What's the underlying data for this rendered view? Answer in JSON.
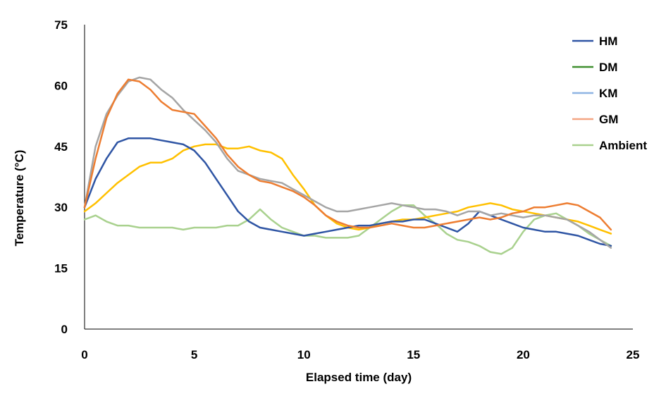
{
  "chart_data": {
    "type": "line",
    "title": "",
    "xlabel": "Elapsed time (day)",
    "ylabel": "Temperature (°C)",
    "xlim": [
      0,
      25
    ],
    "ylim": [
      0,
      75
    ],
    "xticks": [
      "0",
      "5",
      "10",
      "15",
      "20",
      "25"
    ],
    "yticks": [
      "0",
      "15",
      "30",
      "45",
      "60",
      "75"
    ],
    "grid": false,
    "legend_position": "right",
    "series": [
      {
        "name": "HM",
        "color": "#2f55a4",
        "x": [
          0,
          0.5,
          1,
          1.5,
          2,
          2.5,
          3,
          3.5,
          4,
          4.5,
          5,
          5.5,
          6,
          6.5,
          7,
          7.5,
          8,
          8.5,
          9,
          9.5,
          10,
          10.5,
          11,
          11.5,
          12,
          12.5,
          13,
          13.5,
          14,
          14.5,
          15,
          15.5,
          16,
          16.5,
          17,
          17.5,
          18,
          18.5,
          19,
          19.5,
          20,
          20.5,
          21,
          21.5,
          22,
          22.5,
          23,
          23.5,
          24
        ],
        "y": [
          30,
          37,
          42,
          46,
          47,
          47,
          47,
          46.5,
          46,
          45.5,
          44,
          41,
          37,
          33,
          29,
          26.5,
          25,
          24.5,
          24,
          23.5,
          23,
          23.5,
          24,
          24.5,
          25,
          25.5,
          25.5,
          26,
          26.5,
          26.5,
          27,
          27,
          26,
          25,
          24,
          26,
          29,
          28,
          27,
          26,
          25,
          24.5,
          24,
          24,
          23.5,
          23,
          22,
          21,
          20.5
        ]
      },
      {
        "name": "DM",
        "color": "#ed7d31",
        "x": [
          0,
          0.5,
          1,
          1.5,
          2,
          2.5,
          3,
          3.5,
          4,
          4.5,
          5,
          5.5,
          6,
          6.5,
          7,
          7.5,
          8,
          8.5,
          9,
          9.5,
          10,
          10.5,
          11,
          11.5,
          12,
          12.5,
          13,
          13.5,
          14,
          14.5,
          15,
          15.5,
          16,
          16.5,
          17,
          17.5,
          18,
          18.5,
          19,
          19.5,
          20,
          20.5,
          21,
          21.5,
          22,
          22.5,
          23,
          23.5,
          24
        ],
        "y": [
          30,
          42,
          52,
          58,
          61.5,
          61,
          59,
          56,
          54,
          53.5,
          53,
          50,
          47,
          43,
          40,
          38,
          36.5,
          36,
          35,
          34,
          32.5,
          30.5,
          28,
          26.5,
          25.5,
          25,
          25,
          25.5,
          26,
          25.5,
          25,
          25,
          25.5,
          26,
          26.5,
          27,
          27.5,
          27,
          27.5,
          28.5,
          29,
          30,
          30,
          30.5,
          31,
          30.5,
          29,
          27.5,
          24.5
        ]
      },
      {
        "name": "KM",
        "color": "#a5a5a5",
        "x": [
          0,
          0.5,
          1,
          1.5,
          2,
          2.5,
          3,
          3.5,
          4,
          4.5,
          5,
          5.5,
          6,
          6.5,
          7,
          7.5,
          8,
          8.5,
          9,
          9.5,
          10,
          10.5,
          11,
          11.5,
          12,
          12.5,
          13,
          13.5,
          14,
          14.5,
          15,
          15.5,
          16,
          16.5,
          17,
          17.5,
          18,
          18.5,
          19,
          19.5,
          20,
          20.5,
          21,
          21.5,
          22,
          22.5,
          23,
          23.5,
          24
        ],
        "y": [
          30,
          45,
          53,
          57.5,
          61,
          62,
          61.5,
          59,
          57,
          54,
          51.5,
          49,
          46,
          42,
          39,
          38,
          37,
          36.5,
          36,
          34.5,
          33,
          31.5,
          30,
          29,
          29,
          29.5,
          30,
          30.5,
          31,
          30.5,
          30,
          29.5,
          29.5,
          29,
          28,
          29,
          29,
          28,
          28.5,
          28,
          27.5,
          28,
          28,
          27.5,
          27,
          25.5,
          24,
          22,
          20
        ]
      },
      {
        "name": "GM",
        "color": "#ffc000",
        "x": [
          0,
          0.5,
          1,
          1.5,
          2,
          2.5,
          3,
          3.5,
          4,
          4.5,
          5,
          5.5,
          6,
          6.5,
          7,
          7.5,
          8,
          8.5,
          9,
          9.5,
          10,
          10.5,
          11,
          11.5,
          12,
          12.5,
          13,
          13.5,
          14,
          14.5,
          15,
          15.5,
          16,
          16.5,
          17,
          17.5,
          18,
          18.5,
          19,
          19.5,
          20,
          20.5,
          21,
          21.5,
          22,
          22.5,
          23,
          23.5,
          24
        ],
        "y": [
          29,
          31,
          33.5,
          36,
          38,
          40,
          41,
          41,
          42,
          44,
          45,
          45.5,
          45.5,
          44.5,
          44.5,
          45,
          44,
          43.5,
          42,
          38,
          34.5,
          30.5,
          28,
          26,
          25,
          24.5,
          25,
          26,
          26.5,
          27,
          27,
          27.5,
          28,
          28.5,
          29,
          30,
          30.5,
          31,
          30.5,
          29.5,
          29,
          28.5,
          28,
          27.5,
          27,
          26.5,
          25.5,
          24.5,
          23.5
        ]
      },
      {
        "name": "Ambient",
        "color": "#a9d18e",
        "x": [
          0,
          0.5,
          1,
          1.5,
          2,
          2.5,
          3,
          3.5,
          4,
          4.5,
          5,
          5.5,
          6,
          6.5,
          7,
          7.5,
          8,
          8.5,
          9,
          9.5,
          10,
          10.5,
          11,
          11.5,
          12,
          12.5,
          13,
          13.5,
          14,
          14.5,
          15,
          15.5,
          16,
          16.5,
          17,
          17.5,
          18,
          18.5,
          19,
          19.5,
          20,
          20.5,
          21,
          21.5,
          22,
          22.5,
          23,
          23.5,
          24
        ],
        "y": [
          27,
          28,
          26.5,
          25.5,
          25.5,
          25,
          25,
          25,
          25,
          24.5,
          25,
          25,
          25,
          25.5,
          25.5,
          27,
          29.5,
          27,
          25,
          24,
          23,
          23,
          22.5,
          22.5,
          22.5,
          23,
          25,
          27,
          29,
          30.5,
          30.5,
          28,
          26,
          23.5,
          22,
          21.5,
          20.5,
          19,
          18.5,
          20,
          24,
          27,
          28,
          28.5,
          27,
          25.5,
          23.5,
          22,
          20.5
        ]
      }
    ]
  }
}
